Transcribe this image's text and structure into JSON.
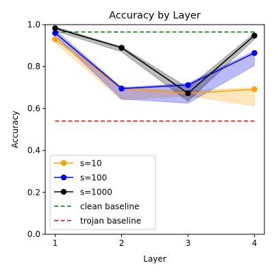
{
  "chart_data": {
    "type": "line",
    "title": "Accuracy by Layer",
    "xlabel": "Layer",
    "ylabel": "Accuracy",
    "x": [
      1,
      2,
      3,
      4
    ],
    "xlim": [
      0.85,
      4.15
    ],
    "ylim": [
      0.0,
      1.0
    ],
    "xticks": [
      "1",
      "2",
      "3",
      "4"
    ],
    "yticks": [
      "0.0",
      "0.2",
      "0.4",
      "0.6",
      "0.8",
      "1.0"
    ],
    "grid": false,
    "legend_position": "lower-left",
    "series": [
      {
        "name": "s=10",
        "color": "#ff9f00",
        "values": [
          0.93,
          0.695,
          0.672,
          0.692
        ],
        "band_lower": [
          0.915,
          0.64,
          0.66,
          0.612
        ],
        "band_upper": [
          0.945,
          0.7,
          0.685,
          0.7
        ]
      },
      {
        "name": "s=100",
        "color": "#0000ff",
        "values": [
          0.96,
          0.695,
          0.712,
          0.865
        ],
        "band_lower": [
          0.945,
          0.645,
          0.625,
          0.805
        ],
        "band_upper": [
          0.975,
          0.7,
          0.72,
          0.875
        ]
      },
      {
        "name": "s=1000",
        "color": "#000000",
        "values": [
          0.983,
          0.89,
          0.673,
          0.948
        ],
        "band_lower": [
          0.97,
          0.87,
          0.635,
          0.93
        ],
        "band_upper": [
          0.99,
          0.895,
          0.7,
          0.96
        ]
      }
    ],
    "baselines": [
      {
        "name": "clean baseline",
        "value": 0.965,
        "color": "#008000"
      },
      {
        "name": "trojan baseline",
        "value": 0.54,
        "color": "#ff0000"
      }
    ]
  }
}
